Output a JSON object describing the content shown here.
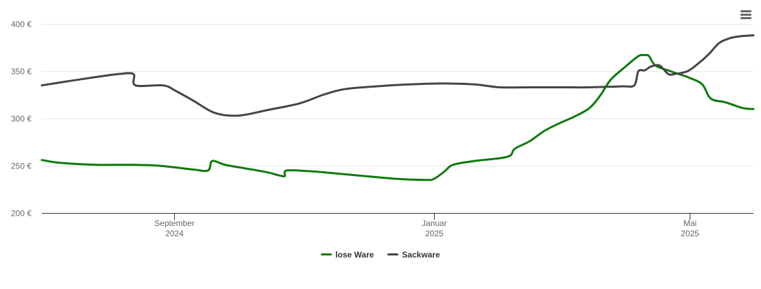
{
  "menu": {
    "icon": "hamburger-menu-icon"
  },
  "chart_data": {
    "type": "line",
    "title": "",
    "xlabel": "",
    "ylabel": "",
    "y_ticks": [
      "200 €",
      "250 €",
      "300 €",
      "350 €",
      "400 €"
    ],
    "y_tick_values": [
      200,
      250,
      300,
      350,
      400
    ],
    "ylim": [
      200,
      400
    ],
    "xlim": [
      "2024-07-01",
      "2025-05-31"
    ],
    "x_ticks": [
      {
        "date": "2024-09-01",
        "month": "September",
        "year": "2024"
      },
      {
        "date": "2025-01-01",
        "month": "Januar",
        "year": "2025"
      },
      {
        "date": "2025-05-01",
        "month": "Mai",
        "year": "2025"
      }
    ],
    "grid": true,
    "legend_position": "bottom-center",
    "series": [
      {
        "name": "lose Ware",
        "color": "#0a7a0a",
        "points": [
          [
            "2024-07-01",
            256
          ],
          [
            "2024-07-10",
            253
          ],
          [
            "2024-07-27",
            251
          ],
          [
            "2024-08-10",
            251
          ],
          [
            "2024-08-25",
            250
          ],
          [
            "2024-09-10",
            246
          ],
          [
            "2024-09-17",
            245
          ],
          [
            "2024-09-19",
            255
          ],
          [
            "2024-09-25",
            251
          ],
          [
            "2024-10-05",
            247
          ],
          [
            "2024-10-15",
            243
          ],
          [
            "2024-10-20",
            240
          ],
          [
            "2024-10-23",
            239
          ],
          [
            "2024-10-24",
            245
          ],
          [
            "2024-11-05",
            244
          ],
          [
            "2024-11-20",
            241
          ],
          [
            "2024-12-05",
            238
          ],
          [
            "2024-12-15",
            236
          ],
          [
            "2024-12-28",
            235
          ],
          [
            "2025-01-01",
            236
          ],
          [
            "2025-01-06",
            244
          ],
          [
            "2025-01-10",
            251
          ],
          [
            "2025-01-20",
            255
          ],
          [
            "2025-02-01",
            258
          ],
          [
            "2025-02-06",
            261
          ],
          [
            "2025-02-08",
            268
          ],
          [
            "2025-02-15",
            276
          ],
          [
            "2025-02-22",
            287
          ],
          [
            "2025-03-01",
            295
          ],
          [
            "2025-03-08",
            302
          ],
          [
            "2025-03-15",
            311
          ],
          [
            "2025-03-20",
            324
          ],
          [
            "2025-03-25",
            341
          ],
          [
            "2025-04-01",
            355
          ],
          [
            "2025-04-07",
            366
          ],
          [
            "2025-04-10",
            367
          ],
          [
            "2025-04-12",
            366
          ],
          [
            "2025-04-15",
            356
          ],
          [
            "2025-04-22",
            350
          ],
          [
            "2025-05-01",
            343
          ],
          [
            "2025-05-07",
            336
          ],
          [
            "2025-05-11",
            321
          ],
          [
            "2025-05-18",
            317
          ],
          [
            "2025-05-26",
            311
          ],
          [
            "2025-05-31",
            310
          ]
        ]
      },
      {
        "name": "Sackware",
        "color": "#434348",
        "points": [
          [
            "2024-07-01",
            335
          ],
          [
            "2024-07-15",
            340
          ],
          [
            "2024-07-30",
            345
          ],
          [
            "2024-08-06",
            347
          ],
          [
            "2024-08-13",
            347
          ],
          [
            "2024-08-14",
            335
          ],
          [
            "2024-08-27",
            335
          ],
          [
            "2024-09-02",
            329
          ],
          [
            "2024-09-10",
            319
          ],
          [
            "2024-09-20",
            306
          ],
          [
            "2024-10-01",
            303
          ],
          [
            "2024-10-15",
            309
          ],
          [
            "2024-10-30",
            316
          ],
          [
            "2024-11-10",
            325
          ],
          [
            "2024-11-20",
            331
          ],
          [
            "2024-12-05",
            334
          ],
          [
            "2024-12-20",
            336
          ],
          [
            "2025-01-05",
            337
          ],
          [
            "2025-01-20",
            336
          ],
          [
            "2025-02-01",
            333
          ],
          [
            "2025-02-15",
            333
          ],
          [
            "2025-03-01",
            333
          ],
          [
            "2025-03-15",
            333
          ],
          [
            "2025-03-30",
            334
          ],
          [
            "2025-04-05",
            335
          ],
          [
            "2025-04-07",
            350
          ],
          [
            "2025-04-10",
            351
          ],
          [
            "2025-04-13",
            355
          ],
          [
            "2025-04-17",
            356
          ],
          [
            "2025-04-21",
            347
          ],
          [
            "2025-04-24",
            347
          ],
          [
            "2025-04-30",
            350
          ],
          [
            "2025-05-05",
            358
          ],
          [
            "2025-05-10",
            368
          ],
          [
            "2025-05-15",
            380
          ],
          [
            "2025-05-20",
            385
          ],
          [
            "2025-05-25",
            387
          ],
          [
            "2025-05-31",
            388
          ]
        ]
      }
    ]
  }
}
